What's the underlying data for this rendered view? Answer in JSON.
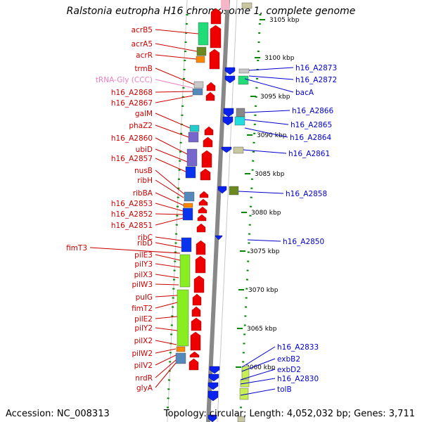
{
  "title": "Ralstonia eutropha H16 chromosome 1, complete genome",
  "accession": "Accession: NC_008313",
  "topology": "Topology: circular; Length: 4,052,032 bp; Genes: 3,711",
  "colors": {
    "left_label": "#cc0000",
    "right_label": "#0000cc",
    "trna_label": "#ee7fc0",
    "dots": "#008800"
  },
  "scale": [
    "3105 kbp",
    "3100 kbp",
    "3095 kbp",
    "3090 kbp",
    "3085 kbp",
    "3080 kbp",
    "3075 kbp",
    "3070 kbp",
    "3065 kbp",
    "3060 kbp"
  ],
  "left_labels": [
    "acrB5",
    "acrA5",
    "acrR",
    "trmB",
    "tRNA-Gly (CCC)",
    "h16_A2868",
    "h16_A2867",
    "galM",
    "phaZ2",
    "h16_A2860",
    "ubiD",
    "h16_A2857",
    "nusB",
    "ribH",
    "ribBA",
    "h16_A2853",
    "h16_A2852",
    "h16_A2851",
    "ribC",
    "ribD",
    "fimT3",
    "pilE3",
    "pilY3",
    "pilX3",
    "pilW3",
    "pulG",
    "fimT2",
    "pilE2",
    "pilY2",
    "pilX2",
    "pilW2",
    "pilV2",
    "nrdR",
    "glyA"
  ],
  "right_labels": [
    "h16_A2873",
    "h16_A2872",
    "bacA",
    "h16_A2866",
    "h16_A2865",
    "h16_A2864",
    "h16_A2861",
    "h16_A2858",
    "h16_A2850",
    "h16_A2833",
    "exbB2",
    "exbD2",
    "h16_A2830",
    "tolB"
  ]
}
